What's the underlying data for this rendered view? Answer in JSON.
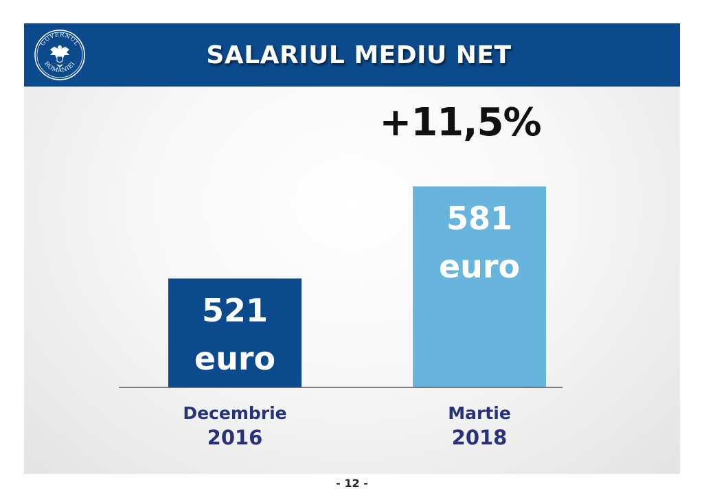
{
  "header": {
    "title": "SALARIUL MEDIU NET",
    "logo_text_top": "GUVERNUL",
    "logo_text_bottom": "ROMÂNIEI"
  },
  "chart_data": {
    "type": "bar",
    "categories": [
      "Decembrie 2016",
      "Martie 2018"
    ],
    "values": [
      521,
      581
    ],
    "unit": "euro",
    "data_labels": [
      {
        "value": "521",
        "unit": "euro"
      },
      {
        "value": "581",
        "unit": "euro"
      }
    ],
    "category_labels": [
      {
        "line1": "Decembrie",
        "line2": "2016"
      },
      {
        "line1": "Martie",
        "line2": "2018"
      }
    ],
    "colors": [
      "#0b4a8c",
      "#67b4dc"
    ],
    "annotation": "+11,5%",
    "ylim": [
      450,
      600
    ],
    "grid": false,
    "legend": "none"
  },
  "footer": {
    "page_number": "- 12 -"
  },
  "colors": {
    "header_bg": "#0b4a8c",
    "category_text": "#27327a"
  }
}
